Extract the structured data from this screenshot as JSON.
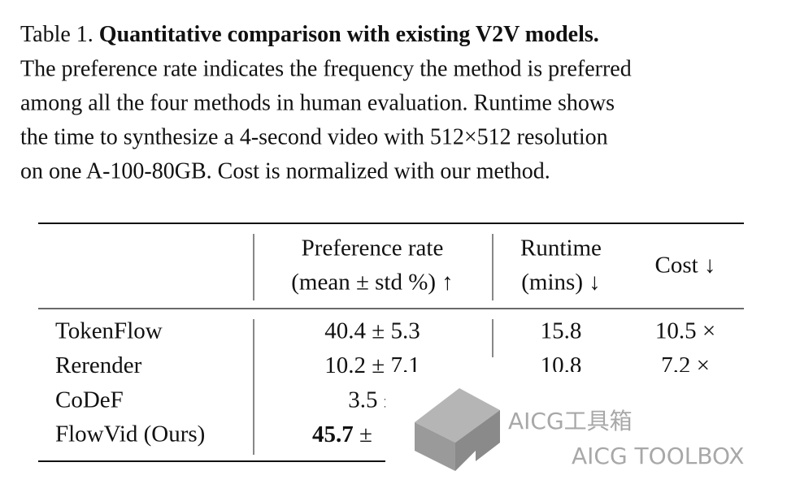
{
  "caption": {
    "label": "Table 1.",
    "title": "Quantitative comparison with existing V2V models.",
    "lines": [
      "The preference rate indicates the frequency the method is preferred",
      "among all the four methods in human evaluation. Runtime shows",
      "the time to synthesize a 4-second video with 512×512 resolution",
      "on one A-100-80GB. Cost is normalized with our method."
    ]
  },
  "table": {
    "header": {
      "preference": [
        "Preference rate",
        "(mean ± std %) ↑"
      ],
      "runtime": [
        "Runtime",
        "(mins) ↓"
      ],
      "cost": "Cost ↓"
    },
    "rows": [
      {
        "method": "TokenFlow",
        "preference": "40.4 ± 5.3",
        "runtime": "15.8",
        "cost": "10.5 ×"
      },
      {
        "method": "Rerender",
        "preference": "10.2 ± 7.1",
        "runtime": "10.8",
        "cost": "7.2 ×"
      },
      {
        "method": "CoDeF",
        "preference": "3.5 ±"
      },
      {
        "method": "FlowVid (Ours)",
        "preference_bold": "45.7",
        "preference_rest": "±"
      }
    ]
  },
  "watermark": {
    "title": "AICG工具箱",
    "subtitle": "AICG TOOLBOX"
  }
}
